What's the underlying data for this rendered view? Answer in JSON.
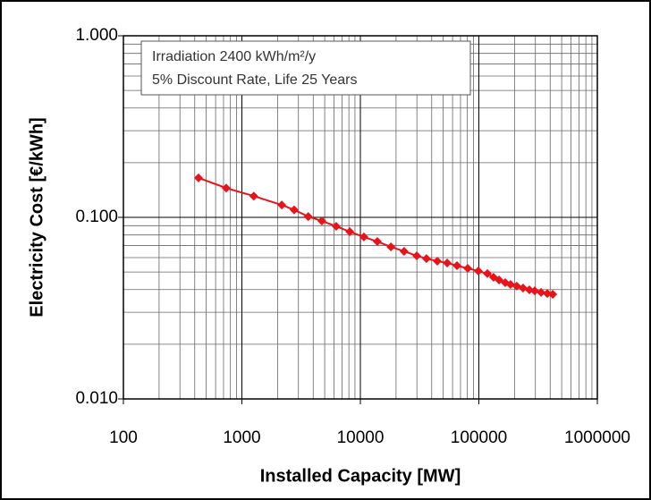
{
  "chart_data": {
    "type": "line",
    "annotations": [
      "Irradiation 2400 kWh/m²/y",
      "5% Discount Rate, Life 25 Years"
    ],
    "x_label": "Installed Capacity [MW]",
    "y_label": "Electricity Cost [€/kWh]",
    "x": [
      430,
      738,
      1260,
      2170,
      2760,
      3630,
      4730,
      6250,
      8130,
      10700,
      13900,
      18100,
      23400,
      29900,
      36100,
      44600,
      54000,
      65400,
      80500,
      99000,
      118000,
      133000,
      148000,
      167000,
      185000,
      209000,
      236000,
      267000,
      296000,
      335000,
      378000,
      420000
    ],
    "series": [
      {
        "color": "#e8141b",
        "values": [
          0.165,
          0.145,
          0.131,
          0.117,
          0.11,
          0.101,
          0.0955,
          0.0893,
          0.0834,
          0.078,
          0.0736,
          0.0688,
          0.065,
          0.0614,
          0.0593,
          0.0574,
          0.0561,
          0.0542,
          0.0524,
          0.0506,
          0.049,
          0.0468,
          0.0452,
          0.0437,
          0.0427,
          0.0418,
          0.0408,
          0.0399,
          0.0394,
          0.0386,
          0.0381,
          0.0377
        ]
      }
    ],
    "xlim": [
      100,
      1000000
    ],
    "ylim": [
      0.01,
      1
    ],
    "xticks": [
      100,
      1000,
      10000,
      100000,
      1000000
    ],
    "yticks": [
      {
        "value": 0.01,
        "label": "0.010"
      },
      {
        "value": 0.1,
        "label": "0.100"
      },
      {
        "value": 1,
        "label": "1.000"
      }
    ],
    "xlog": true,
    "ylog": true,
    "grid": true,
    "minor_grid": true
  }
}
